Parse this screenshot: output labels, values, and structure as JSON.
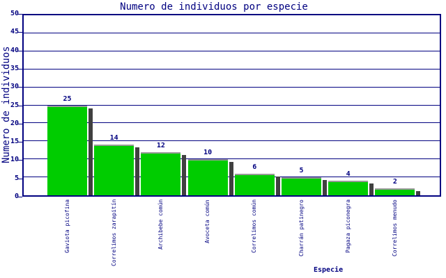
{
  "chart_data": {
    "type": "bar",
    "title": "Numero de individuos por especie",
    "xlabel": "Especie",
    "ylabel": "Numero de individuos",
    "categories": [
      "Gaviota picofina",
      "Correlimos zarapitín",
      "Archibebe común",
      "Avoceta común",
      "Correlimos común",
      "Charrán patinegro",
      "Pagaza piconegra",
      "Correlimos menudo"
    ],
    "values": [
      25,
      14,
      12,
      10,
      6,
      5,
      4,
      2
    ],
    "ylim": [
      0,
      50
    ],
    "ytick_step": 5,
    "grid": "horizontal",
    "legend": "none",
    "colors": {
      "bar": "#00CC00",
      "bar_top_border": "#999999",
      "shadow": "#404040",
      "axis": "#000080",
      "text": "#000080",
      "background": "#ffffff"
    }
  }
}
